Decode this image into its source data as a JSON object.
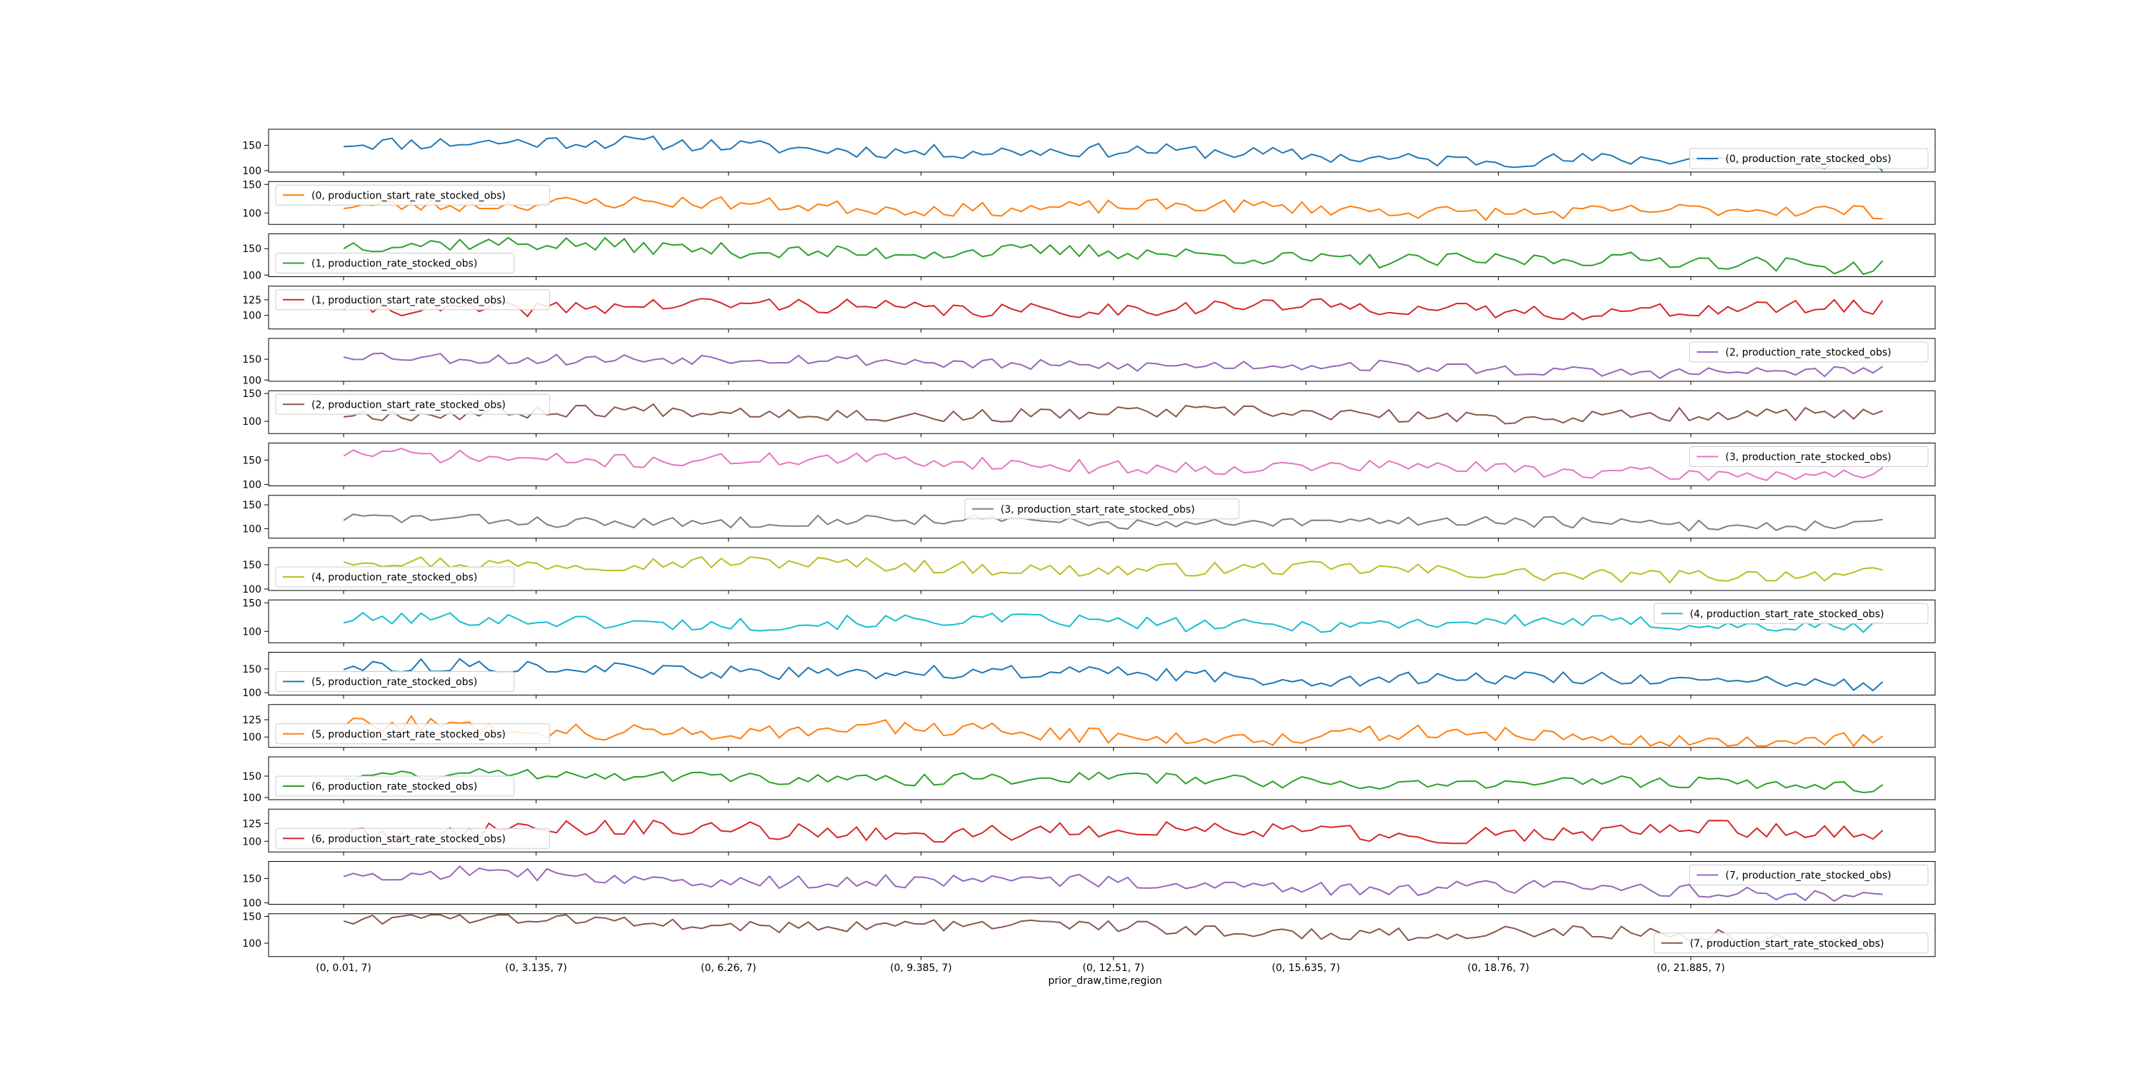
{
  "chart_data": {
    "type": "line",
    "xlabel": "prior_draw,time,region",
    "x_tick_labels": [
      "(0, 0.01, 7)",
      "(0, 3.135, 7)",
      "(0, 6.26, 7)",
      "(0, 9.385, 7)",
      "(0, 12.51, 7)",
      "(0, 15.635, 7)",
      "(0, 18.76, 7)",
      "(0, 21.885, 7)"
    ],
    "x_tick_values": [
      0.01,
      3.135,
      6.26,
      9.385,
      12.51,
      15.635,
      18.76,
      21.885
    ],
    "x_range": [
      0.01,
      25.0
    ],
    "grid": false,
    "subplots": [
      {
        "series": "(0, production_rate_stocked_obs)",
        "color": "#1f77b4",
        "yticks": [
          100,
          150
        ],
        "ylim": [
          97,
          182
        ],
        "legend": "lower right",
        "start": 160,
        "end": 112,
        "jitter": 14,
        "seed": 11
      },
      {
        "series": "(0, production_start_rate_stocked_obs)",
        "color": "#ff7f0e",
        "yticks": [
          100,
          150
        ],
        "ylim": [
          80,
          155
        ],
        "legend": "upper left",
        "start": 118,
        "end": 100,
        "jitter": 12,
        "seed": 23
      },
      {
        "series": "(1, production_rate_stocked_obs)",
        "color": "#2ca02c",
        "yticks": [
          100,
          150
        ],
        "ylim": [
          97,
          178
        ],
        "legend": "lower left",
        "start": 160,
        "end": 118,
        "jitter": 14,
        "seed": 37
      },
      {
        "series": "(1, production_start_rate_stocked_obs)",
        "color": "#d62728",
        "yticks": [
          100,
          125
        ],
        "ylim": [
          78,
          147
        ],
        "legend": "upper left",
        "start": 115,
        "end": 108,
        "jitter": 12,
        "seed": 41
      },
      {
        "series": "(2, production_rate_stocked_obs)",
        "color": "#9467bd",
        "yticks": [
          100,
          150
        ],
        "ylim": [
          97,
          200
        ],
        "legend": "upper right",
        "start": 160,
        "end": 115,
        "jitter": 14,
        "seed": 53
      },
      {
        "series": "(2, production_start_rate_stocked_obs)",
        "color": "#8c564b",
        "yticks": [
          100,
          150
        ],
        "ylim": [
          78,
          155
        ],
        "legend": "upper left",
        "start": 118,
        "end": 108,
        "jitter": 12,
        "seed": 67
      },
      {
        "series": "(3, production_rate_stocked_obs)",
        "color": "#e377c2",
        "yticks": [
          100,
          150
        ],
        "ylim": [
          97,
          185
        ],
        "legend": "upper right",
        "start": 160,
        "end": 120,
        "jitter": 14,
        "seed": 71
      },
      {
        "series": "(3, production_start_rate_stocked_obs)",
        "color": "#7f7f7f",
        "yticks": [
          100,
          150
        ],
        "ylim": [
          80,
          170
        ],
        "legend": "upper center",
        "start": 118,
        "end": 110,
        "jitter": 12,
        "seed": 83
      },
      {
        "series": "(4, production_rate_stocked_obs)",
        "color": "#bcbd22",
        "yticks": [
          100,
          150
        ],
        "ylim": [
          97,
          185
        ],
        "legend": "lower left",
        "start": 160,
        "end": 125,
        "jitter": 14,
        "seed": 97
      },
      {
        "series": "(4, production_start_rate_stocked_obs)",
        "color": "#17becf",
        "yticks": [
          100,
          150
        ],
        "ylim": [
          80,
          155
        ],
        "legend": "upper right",
        "start": 118,
        "end": 112,
        "jitter": 12,
        "seed": 101
      },
      {
        "series": "(5, production_rate_stocked_obs)",
        "color": "#1f77b4",
        "yticks": [
          100,
          150
        ],
        "ylim": [
          95,
          185
        ],
        "legend": "lower left",
        "start": 155,
        "end": 120,
        "jitter": 14,
        "seed": 113
      },
      {
        "series": "(5, production_start_rate_stocked_obs)",
        "color": "#ff7f0e",
        "yticks": [
          100,
          125
        ],
        "ylim": [
          85,
          147
        ],
        "legend": "lower left",
        "start": 115,
        "end": 95,
        "jitter": 12,
        "seed": 127
      },
      {
        "series": "(6, production_rate_stocked_obs)",
        "color": "#2ca02c",
        "yticks": [
          100,
          150
        ],
        "ylim": [
          95,
          195
        ],
        "legend": "lower left",
        "start": 155,
        "end": 128,
        "jitter": 14,
        "seed": 131
      },
      {
        "series": "(6, production_start_rate_stocked_obs)",
        "color": "#d62728",
        "yticks": [
          100,
          125
        ],
        "ylim": [
          85,
          145
        ],
        "legend": "lower left",
        "start": 115,
        "end": 112,
        "jitter": 12,
        "seed": 149
      },
      {
        "series": "(7, production_rate_stocked_obs)",
        "color": "#9467bd",
        "yticks": [
          100,
          150
        ],
        "ylim": [
          97,
          185
        ],
        "legend": "upper right",
        "start": 160,
        "end": 118,
        "jitter": 14,
        "seed": 157
      },
      {
        "series": "(7, production_start_rate_stocked_obs)",
        "color": "#8c564b",
        "yticks": [
          100,
          150
        ],
        "ylim": [
          75,
          155
        ],
        "legend": "lower right",
        "start": 148,
        "end": 108,
        "jitter": 12,
        "seed": 163
      }
    ]
  }
}
